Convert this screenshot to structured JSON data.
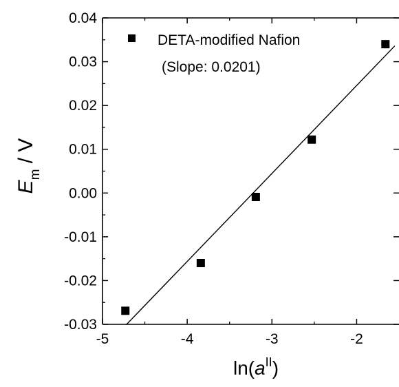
{
  "chart_data": {
    "type": "scatter",
    "xlabel_prefix": "ln(",
    "xlabel_italic": "a",
    "xlabel_superscript": "II",
    "xlabel_suffix": ")",
    "ylabel_italic": "E",
    "ylabel_subscript": "m",
    "ylabel_suffix": " / V",
    "xlim": [
      -5,
      -1.5
    ],
    "ylim": [
      -0.03,
      0.04
    ],
    "xticks": [
      -5,
      -4,
      -3,
      -2
    ],
    "xtick_labels": [
      "-5",
      "-4",
      "-3",
      "-2"
    ],
    "yticks": [
      -0.03,
      -0.02,
      -0.01,
      0.0,
      0.01,
      0.02,
      0.03,
      0.04
    ],
    "ytick_labels": [
      "-0.03",
      "-0.02",
      "-0.01",
      "0.00",
      "0.01",
      "0.02",
      "0.03",
      "0.04"
    ],
    "series": [
      {
        "name": "DETA-modified Nafion",
        "marker": "square",
        "color": "#000000",
        "x": [
          -4.73,
          -3.84,
          -3.19,
          -2.53,
          -1.66
        ],
        "y": [
          -0.0269,
          -0.016,
          -0.0009,
          0.0122,
          0.034
        ]
      }
    ],
    "fit_line": {
      "slope": 0.0201,
      "x": [
        -4.72,
        -1.55
      ],
      "y": [
        -0.0301,
        0.0336
      ]
    },
    "annotation": "(Slope: 0.0201)",
    "legend_position": "top-left"
  }
}
